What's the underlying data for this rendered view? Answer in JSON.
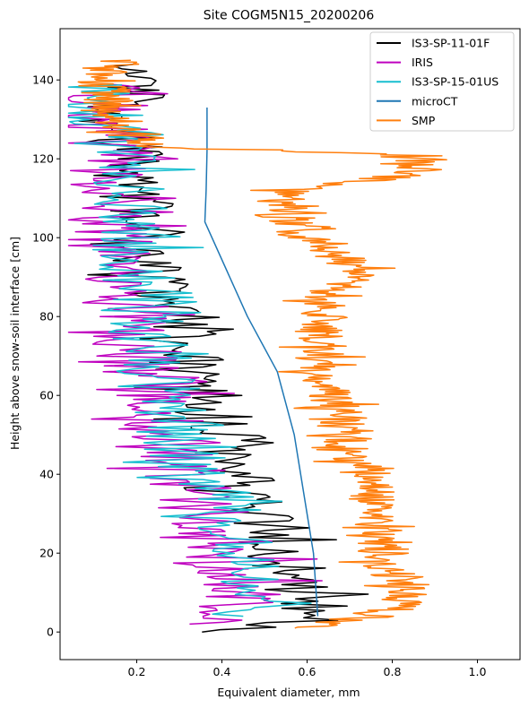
{
  "chart_data": {
    "type": "line",
    "title": "Site COGM5N15_20200206",
    "xlabel": "Equivalent diameter, mm",
    "ylabel": "Height above snow-soil interface [cm]",
    "xlim": [
      0.02,
      1.1
    ],
    "ylim": [
      -7,
      153
    ],
    "x_ticks": [
      0.2,
      0.4,
      0.6,
      0.8,
      1.0
    ],
    "x_tick_labels": [
      "0.2",
      "0.4",
      "0.6",
      "0.8",
      "1.0"
    ],
    "y_ticks": [
      0,
      20,
      40,
      60,
      80,
      100,
      120,
      140
    ],
    "y_tick_labels": [
      "0",
      "20",
      "40",
      "60",
      "80",
      "100",
      "120",
      "140"
    ],
    "grid": false,
    "legend_position": "top-right",
    "series": [
      {
        "name": "IS3-SP-11-01F",
        "color": "#000000",
        "base": [
          [
            0.4,
            0
          ],
          [
            0.62,
            3
          ],
          [
            0.6,
            8
          ],
          [
            0.58,
            12
          ],
          [
            0.56,
            16
          ],
          [
            0.54,
            20
          ],
          [
            0.5,
            25
          ],
          [
            0.48,
            30
          ],
          [
            0.46,
            35
          ],
          [
            0.44,
            40
          ],
          [
            0.42,
            45
          ],
          [
            0.4,
            50
          ],
          [
            0.38,
            55
          ],
          [
            0.36,
            60
          ],
          [
            0.33,
            65
          ],
          [
            0.31,
            70
          ],
          [
            0.29,
            75
          ],
          [
            0.27,
            80
          ],
          [
            0.25,
            85
          ],
          [
            0.24,
            90
          ],
          [
            0.23,
            95
          ],
          [
            0.22,
            100
          ],
          [
            0.21,
            105
          ],
          [
            0.2,
            110
          ],
          [
            0.19,
            115
          ],
          [
            0.18,
            120
          ],
          [
            0.17,
            125
          ],
          [
            0.15,
            130
          ],
          [
            0.18,
            135
          ],
          [
            0.19,
            140
          ],
          [
            0.18,
            144
          ]
        ],
        "amplitude": 0.09,
        "step": 0.6,
        "seed": 11
      },
      {
        "name": "IRIS",
        "color": "#bf00bf",
        "base": [
          [
            0.38,
            2
          ],
          [
            0.44,
            5
          ],
          [
            0.46,
            10
          ],
          [
            0.44,
            15
          ],
          [
            0.42,
            20
          ],
          [
            0.4,
            25
          ],
          [
            0.37,
            30
          ],
          [
            0.34,
            35
          ],
          [
            0.32,
            40
          ],
          [
            0.3,
            45
          ],
          [
            0.28,
            50
          ],
          [
            0.26,
            55
          ],
          [
            0.24,
            60
          ],
          [
            0.22,
            65
          ],
          [
            0.21,
            70
          ],
          [
            0.2,
            75
          ],
          [
            0.19,
            80
          ],
          [
            0.18,
            85
          ],
          [
            0.18,
            90
          ],
          [
            0.17,
            95
          ],
          [
            0.16,
            100
          ],
          [
            0.16,
            105
          ],
          [
            0.16,
            110
          ],
          [
            0.15,
            115
          ],
          [
            0.14,
            120
          ],
          [
            0.13,
            125
          ],
          [
            0.12,
            130
          ],
          [
            0.11,
            135
          ],
          [
            0.1,
            139
          ]
        ],
        "amplitude": 0.11,
        "step": 0.5,
        "seed": 23
      },
      {
        "name": "IS3-SP-15-01US",
        "color": "#17becf",
        "base": [
          [
            0.5,
            4
          ],
          [
            0.52,
            8
          ],
          [
            0.5,
            12
          ],
          [
            0.48,
            16
          ],
          [
            0.46,
            20
          ],
          [
            0.44,
            25
          ],
          [
            0.41,
            30
          ],
          [
            0.38,
            35
          ],
          [
            0.35,
            40
          ],
          [
            0.32,
            45
          ],
          [
            0.3,
            50
          ],
          [
            0.28,
            55
          ],
          [
            0.26,
            60
          ],
          [
            0.24,
            65
          ],
          [
            0.23,
            70
          ],
          [
            0.22,
            75
          ],
          [
            0.21,
            80
          ],
          [
            0.2,
            85
          ],
          [
            0.2,
            90
          ],
          [
            0.19,
            95
          ],
          [
            0.18,
            100
          ],
          [
            0.18,
            105
          ],
          [
            0.17,
            110
          ],
          [
            0.17,
            115
          ],
          [
            0.16,
            120
          ],
          [
            0.15,
            125
          ],
          [
            0.13,
            130
          ],
          [
            0.11,
            135
          ],
          [
            0.1,
            139
          ]
        ],
        "amplitude": 0.1,
        "step": 0.55,
        "seed": 37
      },
      {
        "name": "microCT",
        "color": "#1f77b4",
        "points": [
          [
            0.625,
            4
          ],
          [
            0.615,
            20
          ],
          [
            0.57,
            50
          ],
          [
            0.53,
            66
          ],
          [
            0.46,
            80
          ],
          [
            0.36,
            104
          ],
          [
            0.363,
            112
          ],
          [
            0.365,
            122
          ],
          [
            0.365,
            133
          ]
        ],
        "amplitude": 0,
        "step": 0
      },
      {
        "name": "SMP",
        "color": "#ff7f0e",
        "base": [
          [
            0.6,
            1
          ],
          [
            0.75,
            4
          ],
          [
            0.82,
            7
          ],
          [
            0.84,
            10
          ],
          [
            0.82,
            14
          ],
          [
            0.78,
            18
          ],
          [
            0.78,
            22
          ],
          [
            0.78,
            26
          ],
          [
            0.77,
            30
          ],
          [
            0.76,
            34
          ],
          [
            0.75,
            38
          ],
          [
            0.72,
            42
          ],
          [
            0.7,
            46
          ],
          [
            0.69,
            50
          ],
          [
            0.68,
            55
          ],
          [
            0.66,
            58
          ],
          [
            0.65,
            62
          ],
          [
            0.64,
            66
          ],
          [
            0.64,
            70
          ],
          [
            0.63,
            75
          ],
          [
            0.64,
            80
          ],
          [
            0.65,
            85
          ],
          [
            0.7,
            90
          ],
          [
            0.72,
            94
          ],
          [
            0.66,
            97
          ],
          [
            0.6,
            100
          ],
          [
            0.56,
            104
          ],
          [
            0.52,
            108
          ],
          [
            0.55,
            112
          ],
          [
            0.7,
            114
          ],
          [
            0.85,
            116
          ],
          [
            0.88,
            119
          ],
          [
            0.8,
            121
          ],
          [
            0.25,
            123
          ],
          [
            0.2,
            126
          ],
          [
            0.15,
            130
          ],
          [
            0.13,
            135
          ],
          [
            0.12,
            140
          ],
          [
            0.14,
            145
          ]
        ],
        "amplitude": 0.06,
        "step": 0.25,
        "seed": 59
      }
    ],
    "legend": [
      "IS3-SP-11-01F",
      "IRIS",
      "IS3-SP-15-01US",
      "microCT",
      "SMP"
    ]
  }
}
